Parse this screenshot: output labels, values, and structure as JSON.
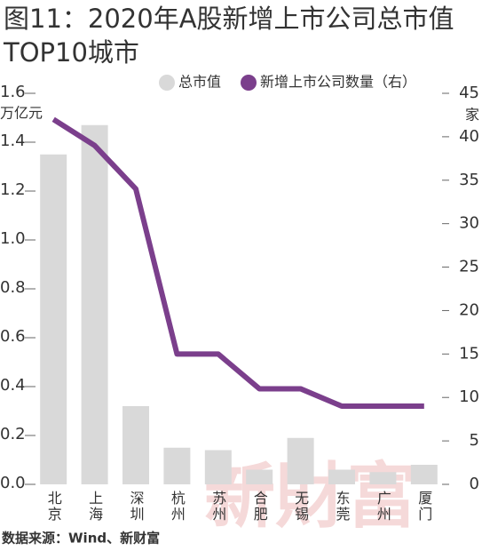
{
  "chart_data": {
    "type": "bar-line",
    "title": "图11：2020年A股新增上市公司总市值TOP10城市",
    "y_label": "万亿元",
    "y2_label": "家",
    "categories": [
      "北京",
      "上海",
      "深圳",
      "杭州",
      "苏州",
      "合肥",
      "无锡",
      "东莞",
      "广州",
      "厦门"
    ],
    "series": [
      {
        "name": "总市值",
        "type": "bar",
        "color": "#d9d9d9",
        "values": [
          1.35,
          1.47,
          0.32,
          0.15,
          0.14,
          0.06,
          0.19,
          0.06,
          0.05,
          0.08
        ]
      },
      {
        "name": "新增上市公司数量（右）",
        "type": "line",
        "axis": "y2",
        "color": "#7b3f8c",
        "values": [
          42,
          39,
          34,
          15,
          15,
          11,
          11,
          9,
          9,
          9
        ]
      }
    ],
    "ylim": [
      0,
      1.6
    ],
    "yticks": [
      {
        "value": 0,
        "label": "0.0"
      },
      0.2,
      0.4,
      0.6,
      0.8,
      {
        "value": 1,
        "label": "1.0"
      },
      1.2,
      1.4,
      1.6
    ],
    "y2lim": [
      0,
      45
    ],
    "y2ticks": [
      0,
      5,
      10,
      15,
      20,
      25,
      30,
      35,
      40,
      45
    ],
    "source": "数据来源：Wind、新财富",
    "watermark": "新財富"
  }
}
